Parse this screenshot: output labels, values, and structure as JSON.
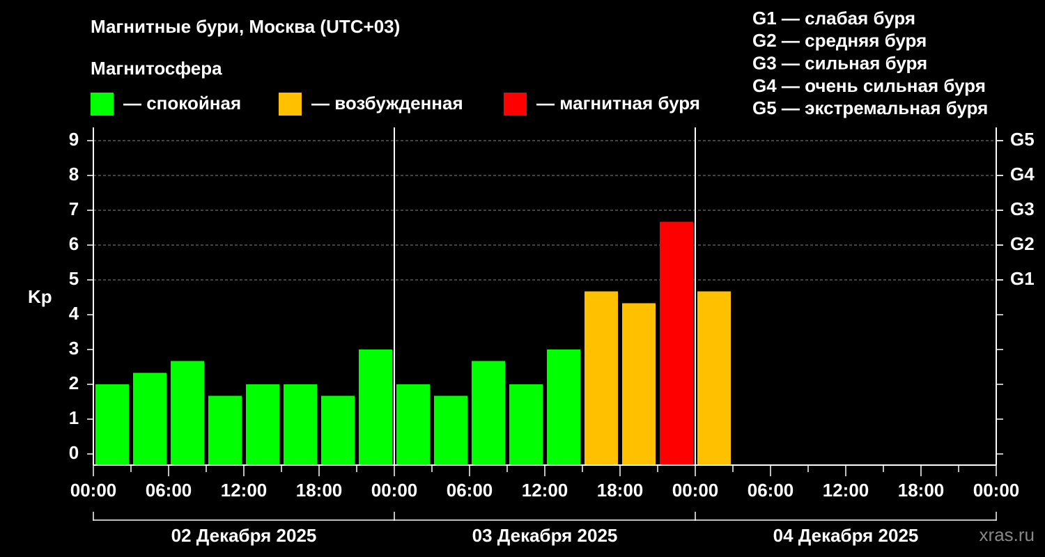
{
  "chart_data": {
    "type": "bar",
    "title": "Магнитные бури, Москва (UTC+03)",
    "legend_title": "Магнитосфера",
    "levels": [
      {
        "name": "— спокойная",
        "color": "#00ff00"
      },
      {
        "name": "— возбужденная",
        "color": "#ffc000"
      },
      {
        "name": "— магнитная буря",
        "color": "#ff0000"
      }
    ],
    "storm_scale": [
      "G1 — слабая буря",
      "G2 — средняя буря",
      "G3 — сильная буря",
      "G4 — очень сильная буря",
      "G5 — экстремальная буря"
    ],
    "ylabel": "Kp",
    "x": [
      0,
      3,
      6,
      9,
      12,
      15,
      18,
      21,
      24,
      27,
      30,
      33,
      36,
      39,
      42,
      45,
      48
    ],
    "values": [
      2,
      2.33,
      2.67,
      1.67,
      2,
      2,
      1.67,
      3,
      2,
      1.67,
      2.67,
      2,
      3,
      4.67,
      4.33,
      6.67,
      4.67
    ],
    "bar_colors": [
      "#00ff00",
      "#00ff00",
      "#00ff00",
      "#00ff00",
      "#00ff00",
      "#00ff00",
      "#00ff00",
      "#00ff00",
      "#00ff00",
      "#00ff00",
      "#00ff00",
      "#00ff00",
      "#00ff00",
      "#ffc000",
      "#ffc000",
      "#ff0000",
      "#ffc000"
    ],
    "xlim": [
      0,
      72
    ],
    "xticks": [
      {
        "value": 0,
        "label": "00:00"
      },
      {
        "value": 6,
        "label": "06:00"
      },
      {
        "value": 12,
        "label": "12:00"
      },
      {
        "value": 18,
        "label": "18:00"
      },
      {
        "value": 24,
        "label": "00:00"
      },
      {
        "value": 30,
        "label": "06:00"
      },
      {
        "value": 36,
        "label": "12:00"
      },
      {
        "value": 42,
        "label": "18:00"
      },
      {
        "value": 48,
        "label": "00:00"
      },
      {
        "value": 54,
        "label": "06:00"
      },
      {
        "value": 60,
        "label": "12:00"
      },
      {
        "value": 66,
        "label": "18:00"
      },
      {
        "value": 72,
        "label": "00:00"
      }
    ],
    "xminorticks": [
      3,
      9,
      15,
      21,
      27,
      33,
      39,
      45,
      51,
      57,
      63,
      69
    ],
    "day_labels": [
      "02 Декабря 2025",
      "03 Декабря 2025",
      "04 Декабря 2025"
    ],
    "ylim": [
      -0.32,
      9.38
    ],
    "yticks": [
      0,
      1,
      2,
      3,
      4,
      5,
      6,
      7,
      8,
      9
    ],
    "y2lim": [
      -0.32,
      9.38
    ],
    "y2ticks": [
      {
        "value": 5,
        "label": "G1"
      },
      {
        "value": 6,
        "label": "G2"
      },
      {
        "value": 7,
        "label": "G3"
      },
      {
        "value": 8,
        "label": "G4"
      },
      {
        "value": 9,
        "label": "G5"
      }
    ],
    "grid": true,
    "watermark": "xras.ru"
  }
}
